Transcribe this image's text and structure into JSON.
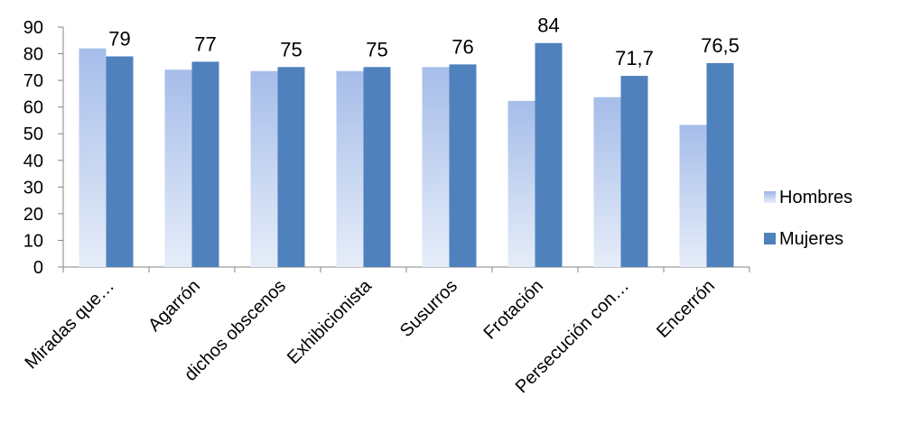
{
  "chart_data": {
    "type": "bar",
    "categories": [
      "Miradas que…",
      "Agarrón",
      "dichos obscenos",
      "Exhibicionista",
      "Susurros",
      "Frotación",
      "Persecución con…",
      "Encerrón"
    ],
    "series": [
      {
        "name": "Hombres",
        "values": [
          82,
          74,
          73.5,
          73.5,
          75,
          62.3,
          63.7,
          53.3
        ],
        "color": "#a9bfe8",
        "data_labels": []
      },
      {
        "name": "Mujeres",
        "values": [
          79,
          77,
          75,
          75,
          76,
          84,
          71.7,
          76.5
        ],
        "color": "#4f81bd",
        "data_labels": [
          "79",
          "77",
          "75",
          "75",
          "76",
          "84",
          "71,7",
          "76,5"
        ]
      }
    ],
    "yticks": [
      "0",
      "10",
      "20",
      "30",
      "40",
      "50",
      "60",
      "70",
      "80",
      "90"
    ],
    "ylim": [
      0,
      90
    ],
    "grid": false,
    "legend_position": "right"
  }
}
